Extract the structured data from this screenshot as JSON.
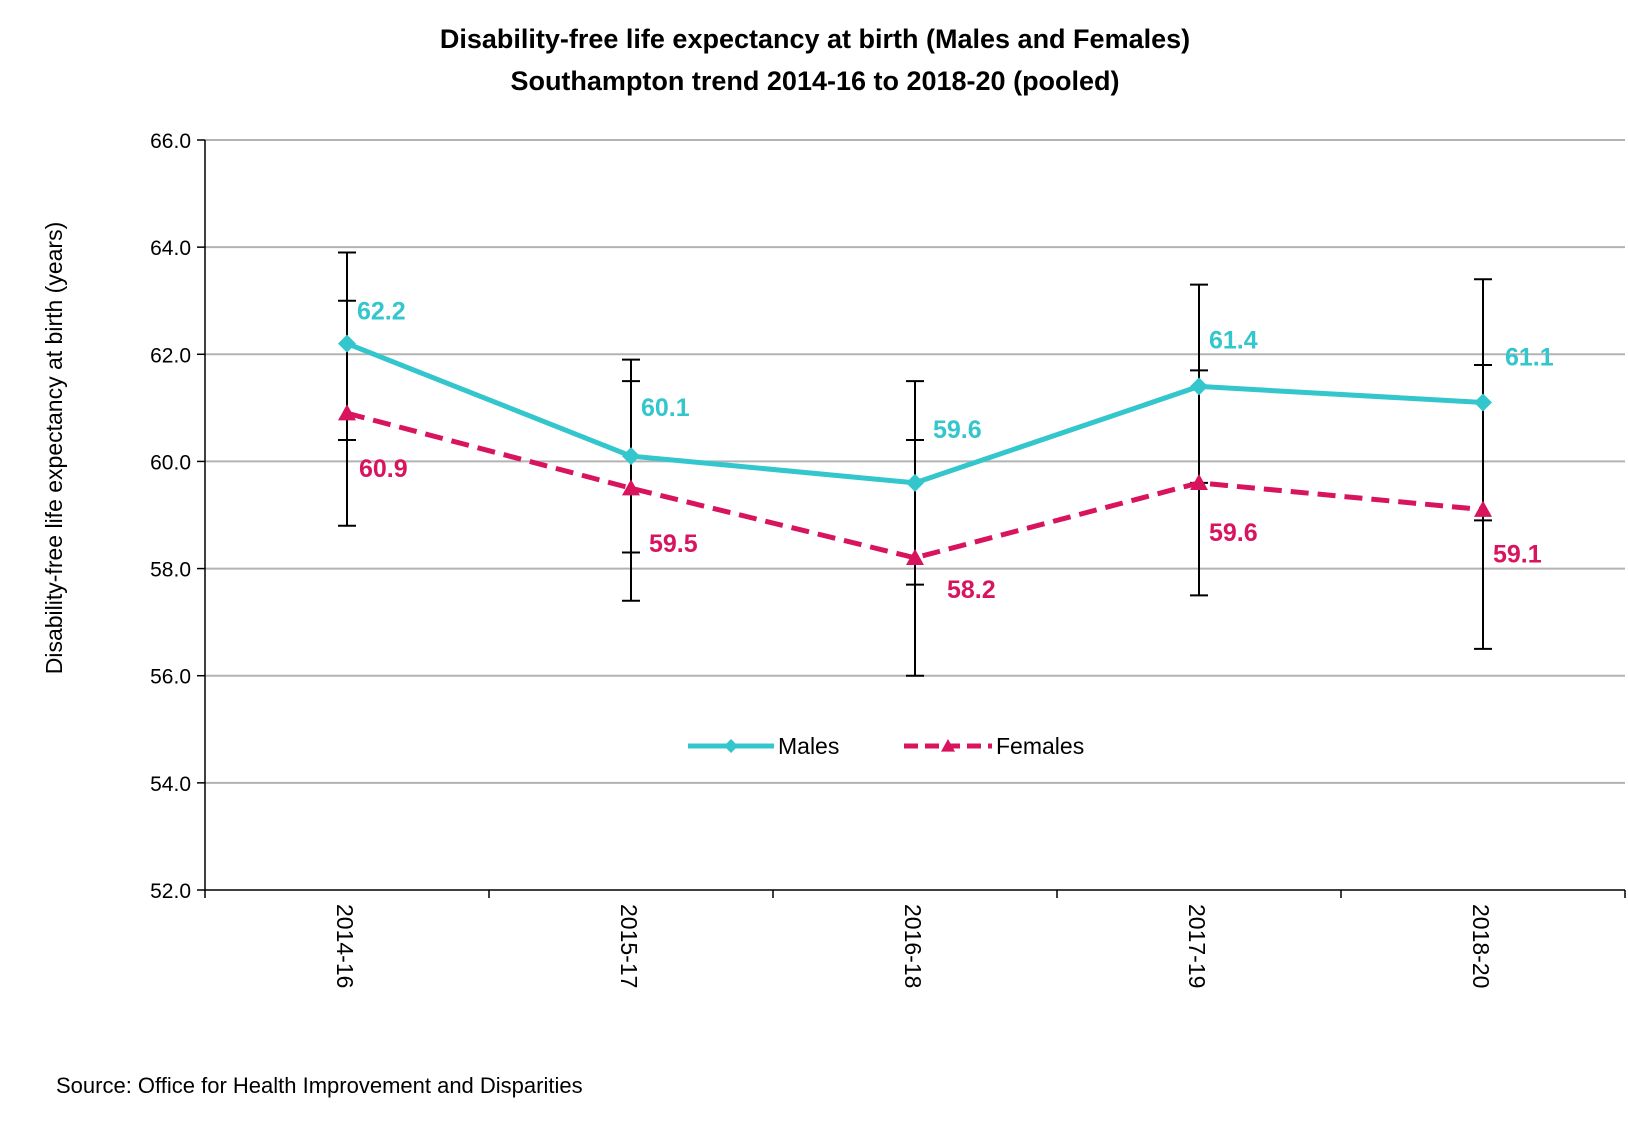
{
  "chart_data": {
    "type": "line",
    "title": "Disability-free life  expectancy at birth (Males and Females)",
    "subtitle": "Southampton trend 2014-16 to 2018-20 (pooled)",
    "xlabel": "",
    "ylabel": "Disability-free life expectancy at birth (years)",
    "ylim": [
      52.0,
      66.0
    ],
    "yticks": [
      "52.0",
      "54.0",
      "56.0",
      "58.0",
      "60.0",
      "62.0",
      "64.0",
      "66.0"
    ],
    "grid": true,
    "legend_position": "center",
    "categories": [
      "2014-16",
      "2015-17",
      "2016-18",
      "2017-19",
      "2018-20"
    ],
    "series": [
      {
        "name": "Males",
        "color": "#33c6cc",
        "marker": "diamond",
        "line_style": "solid",
        "values": [
          62.2,
          60.1,
          59.6,
          61.4,
          61.1
        ],
        "labels": [
          "62.2",
          "60.1",
          "59.6",
          "61.4",
          "61.1"
        ],
        "ci_lower": [
          60.4,
          58.3,
          57.7,
          59.6,
          58.9
        ],
        "ci_upper": [
          63.9,
          61.9,
          61.5,
          63.3,
          63.4
        ]
      },
      {
        "name": "Females",
        "color": "#d9145f",
        "marker": "triangle",
        "line_style": "dashed",
        "values": [
          60.9,
          59.5,
          58.2,
          59.6,
          59.1
        ],
        "labels": [
          "60.9",
          "59.5",
          "58.2",
          "59.6",
          "59.1"
        ],
        "ci_lower": [
          58.8,
          57.4,
          56.0,
          57.5,
          56.5
        ],
        "ci_upper": [
          63.0,
          61.5,
          60.4,
          61.7,
          61.8
        ]
      }
    ]
  },
  "source": "Source: Office for Health Improvement and Disparities"
}
